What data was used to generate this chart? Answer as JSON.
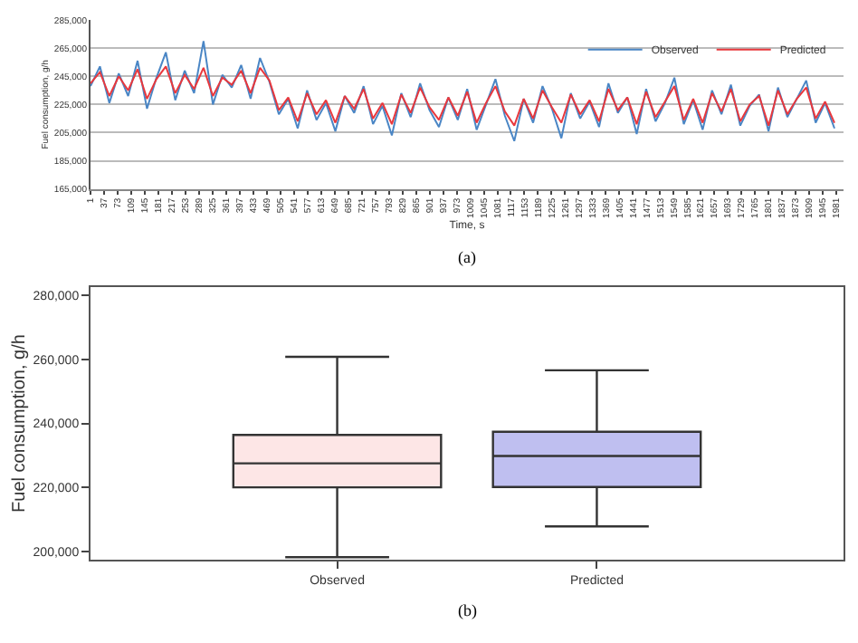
{
  "chart_data": [
    {
      "type": "line",
      "xlabel": "Time, s",
      "ylabel": "Fuel consumption, g/h",
      "annotations": [
        "(a)"
      ],
      "legend": "top right",
      "grid": "y",
      "marker": "none",
      "line_style": "solid",
      "x": [
        1,
        26,
        51,
        76,
        101,
        126,
        151,
        176,
        201,
        226,
        251,
        276,
        301,
        326,
        351,
        376,
        401,
        426,
        451,
        476,
        501,
        526,
        551,
        576,
        601,
        626,
        651,
        676,
        701,
        726,
        751,
        776,
        801,
        826,
        851,
        876,
        901,
        926,
        951,
        976,
        1001,
        1026,
        1051,
        1076,
        1101,
        1126,
        1151,
        1176,
        1201,
        1226,
        1251,
        1276,
        1301,
        1326,
        1351,
        1376,
        1401,
        1426,
        1451,
        1476,
        1501,
        1526,
        1551,
        1576,
        1601,
        1626,
        1651,
        1676,
        1701,
        1726,
        1751,
        1776,
        1801,
        1826,
        1851,
        1876,
        1901,
        1926,
        1951,
        1976
      ],
      "xlim": [
        1,
        2000
      ],
      "xticks": [
        1,
        37,
        73,
        109,
        145,
        181,
        217,
        253,
        289,
        325,
        361,
        397,
        433,
        469,
        505,
        541,
        577,
        613,
        649,
        685,
        721,
        757,
        793,
        829,
        865,
        901,
        937,
        973,
        1009,
        1045,
        1081,
        1117,
        1153,
        1189,
        1225,
        1261,
        1297,
        1333,
        1369,
        1405,
        1441,
        1477,
        1513,
        1549,
        1585,
        1621,
        1657,
        1693,
        1729,
        1765,
        1801,
        1837,
        1873,
        1909,
        1945,
        1981
      ],
      "ylim": [
        165000,
        285000
      ],
      "yticks": [
        {
          "value": 165000,
          "label": "165,000"
        },
        {
          "value": 185000,
          "label": "185,000"
        },
        {
          "value": 205000,
          "label": "205,000"
        },
        {
          "value": 225000,
          "label": "225,000"
        },
        {
          "value": 245000,
          "label": "245,000"
        },
        {
          "value": 265000,
          "label": "265,000"
        },
        {
          "value": 285000,
          "label": "285,000"
        }
      ],
      "series": [
        {
          "name": "Observed",
          "color": "#4a86c5",
          "values": [
            238000,
            252000,
            226000,
            247000,
            231000,
            256000,
            222000,
            244000,
            262000,
            228000,
            249000,
            233000,
            270000,
            225000,
            246000,
            237000,
            253000,
            229000,
            258000,
            241000,
            218000,
            229000,
            208000,
            235000,
            214000,
            226000,
            206000,
            231000,
            219000,
            238000,
            211000,
            224000,
            203000,
            233000,
            216000,
            240000,
            221000,
            209000,
            230000,
            214000,
            236000,
            207000,
            225000,
            243000,
            217000,
            199000,
            229000,
            212000,
            238000,
            222000,
            201000,
            233000,
            215000,
            227000,
            209000,
            240000,
            219000,
            230000,
            204000,
            236000,
            213000,
            226000,
            244000,
            211000,
            228000,
            207000,
            235000,
            218000,
            239000,
            210000,
            224000,
            232000,
            206000,
            237000,
            216000,
            229000,
            242000,
            212000,
            226000,
            208000
          ]
        },
        {
          "name": "Predicted",
          "color": "#e8383d",
          "values": [
            240000,
            248000,
            231000,
            245000,
            235000,
            250000,
            229000,
            243000,
            252000,
            233000,
            246000,
            236000,
            251000,
            231000,
            244000,
            239000,
            249000,
            233000,
            251000,
            242000,
            221000,
            230000,
            213000,
            233000,
            218000,
            228000,
            212000,
            231000,
            222000,
            236000,
            215000,
            226000,
            211000,
            232000,
            219000,
            237000,
            223000,
            214000,
            230000,
            217000,
            234000,
            212000,
            226000,
            238000,
            220000,
            210000,
            229000,
            215000,
            235000,
            223000,
            212000,
            232000,
            218000,
            228000,
            213000,
            236000,
            221000,
            230000,
            211000,
            234000,
            216000,
            227000,
            238000,
            214000,
            229000,
            212000,
            233000,
            220000,
            236000,
            213000,
            225000,
            231000,
            210000,
            235000,
            218000,
            229000,
            237000,
            215000,
            227000,
            212000
          ]
        }
      ]
    },
    {
      "type": "box",
      "ylabel": "Fuel consumption, g/h",
      "annotations": [
        "(b)"
      ],
      "legend": false,
      "grid": false,
      "categories": [
        "Observed",
        "Predicted"
      ],
      "ylim": [
        197400,
        282600
      ],
      "yticks": [
        {
          "value": 200000,
          "label": "200,000"
        },
        {
          "value": 220000,
          "label": "220,000"
        },
        {
          "value": 240000,
          "label": "240,000"
        },
        {
          "value": 260000,
          "label": "260,000"
        },
        {
          "value": 280000,
          "label": "280,000"
        }
      ],
      "colors": [
        "#fde6e6",
        "#bfbff0"
      ],
      "boxes": [
        {
          "low": 198200,
          "q1": 220000,
          "median": 227500,
          "q3": 236400,
          "high": 260800
        },
        {
          "low": 207800,
          "q1": 220100,
          "median": 229800,
          "q3": 237400,
          "high": 256600
        }
      ]
    }
  ]
}
